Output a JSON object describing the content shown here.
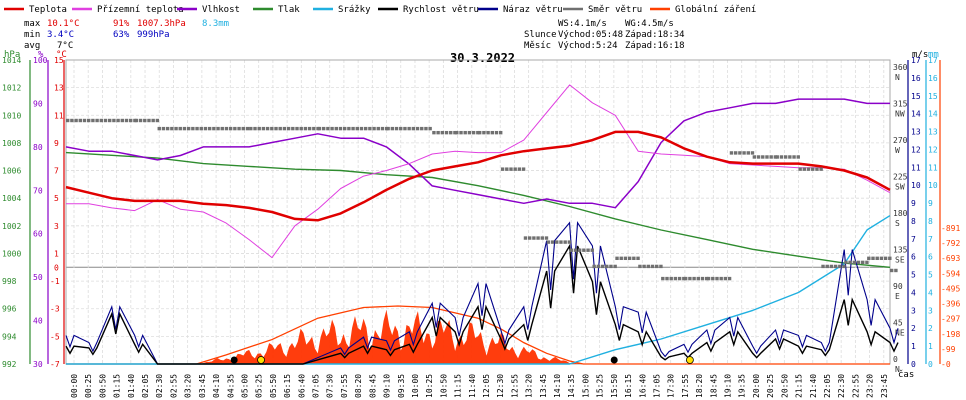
{
  "chart_data": {
    "type": "line",
    "title": "30.3.2022",
    "xlabel": "čas",
    "legend": [
      {
        "name": "Teplota",
        "color": "#e00000"
      },
      {
        "name": "Přízemní teplota",
        "color": "#e040e0"
      },
      {
        "name": "Vlhkost",
        "color": "#8a00c8"
      },
      {
        "name": "Tlak",
        "color": "#2e8b2e"
      },
      {
        "name": "Srážky",
        "color": "#20b0e0"
      },
      {
        "name": "Rychlost větru",
        "color": "#000000"
      },
      {
        "name": "Náraz větru",
        "color": "#00008b"
      },
      {
        "name": "Směr větru",
        "color": "#707070"
      },
      {
        "name": "Globální záření",
        "color": "#ff4000"
      }
    ],
    "stats": {
      "max_label": "max",
      "max_temp": "10.1°C",
      "max_hum": "91%",
      "max_press": "1007.3hPa",
      "max_rain": "8.3mm",
      "min_label": "min",
      "min_temp": "3.4°C",
      "min_hum": "63%",
      "min_press": "999hPa",
      "avg_label": "avg",
      "avg_temp": "7°C"
    },
    "wind_info": {
      "ws": "WS:4.1m/s",
      "wg": "WG:4.5m/s"
    },
    "sun": {
      "label": "Slunce",
      "rise": "Východ:05:48",
      "set": "Západ:18:34"
    },
    "moon": {
      "label": "Měsíc",
      "rise": "Východ:5:24",
      "set": "Západ:16:18"
    },
    "axes": {
      "hpa_unit": "hPa",
      "pct_unit": "%",
      "c_unit": "°C",
      "deg_unit": "m/s",
      "ms_unit": "m/s",
      "mm_unit": "mm",
      "hpa_ticks": [
        992,
        994,
        996,
        998,
        1000,
        1002,
        1004,
        1006,
        1008,
        1010,
        1012,
        1014
      ],
      "pct_ticks": [
        30,
        40,
        50,
        60,
        70,
        80,
        90,
        100
      ],
      "temp_ticks": [
        -7,
        -5,
        -3,
        -1,
        0,
        1,
        3,
        5,
        7,
        9,
        11,
        13,
        15
      ],
      "dir_ticks": [
        {
          "v": 0,
          "l": "0",
          "d": "N"
        },
        {
          "v": 45,
          "l": "45",
          "d": "NE"
        },
        {
          "v": 90,
          "l": "90",
          "d": "E"
        },
        {
          "v": 135,
          "l": "135",
          "d": "SE"
        },
        {
          "v": 180,
          "l": "180",
          "d": "S"
        },
        {
          "v": 225,
          "l": "225",
          "d": "SW"
        },
        {
          "v": 270,
          "l": "270",
          "d": "W"
        },
        {
          "v": 315,
          "l": "315",
          "d": "NW"
        },
        {
          "v": 360,
          "l": "360",
          "d": "N"
        }
      ],
      "ms_ticks": [
        0,
        1,
        2,
        3,
        4,
        5,
        6,
        7,
        8,
        9,
        10,
        11,
        12,
        13,
        14,
        15,
        16,
        17
      ],
      "mm_ticks": [
        0,
        1,
        2,
        3,
        4,
        5,
        6,
        7,
        8,
        9,
        10,
        11,
        12,
        13,
        14,
        15,
        16,
        17
      ],
      "rad_ticks": [
        0,
        99,
        198,
        297,
        396,
        495,
        594,
        693,
        792,
        891
      ]
    },
    "time_labels": [
      "00:00",
      "00:25",
      "00:50",
      "01:15",
      "01:40",
      "02:05",
      "02:30",
      "02:55",
      "03:20",
      "03:45",
      "04:10",
      "04:35",
      "05:00",
      "05:25",
      "05:50",
      "06:15",
      "06:40",
      "07:05",
      "07:30",
      "07:55",
      "08:20",
      "08:45",
      "09:10",
      "09:35",
      "10:00",
      "10:25",
      "10:50",
      "11:15",
      "11:40",
      "12:05",
      "12:30",
      "12:55",
      "13:20",
      "13:45",
      "14:10",
      "14:35",
      "15:00",
      "15:25",
      "15:50",
      "16:15",
      "16:40",
      "17:05",
      "17:30",
      "17:55",
      "18:20",
      "18:45",
      "19:10",
      "19:35",
      "20:00",
      "20:25",
      "20:50",
      "21:15",
      "21:40",
      "22:05",
      "22:30",
      "22:55",
      "23:20",
      "23:45"
    ],
    "series": [
      {
        "name": "Teplota",
        "unit": "°C",
        "points": [
          [
            0,
            5.8
          ],
          [
            1,
            5.4
          ],
          [
            2,
            5.0
          ],
          [
            3,
            4.8
          ],
          [
            4,
            4.8
          ],
          [
            5,
            4.8
          ],
          [
            6,
            4.6
          ],
          [
            7,
            4.5
          ],
          [
            8,
            4.3
          ],
          [
            9,
            4.0
          ],
          [
            10,
            3.5
          ],
          [
            11,
            3.4
          ],
          [
            12,
            3.9
          ],
          [
            13,
            4.7
          ],
          [
            14,
            5.6
          ],
          [
            15,
            6.4
          ],
          [
            16,
            7.0
          ],
          [
            17,
            7.3
          ],
          [
            18,
            7.6
          ],
          [
            19,
            8.1
          ],
          [
            20,
            8.4
          ],
          [
            21,
            8.6
          ],
          [
            22,
            8.8
          ],
          [
            23,
            9.2
          ],
          [
            24,
            9.8
          ],
          [
            25,
            9.8
          ],
          [
            26,
            9.4
          ],
          [
            27,
            8.6
          ],
          [
            28,
            8.0
          ],
          [
            29,
            7.6
          ],
          [
            30,
            7.5
          ],
          [
            31,
            7.5
          ],
          [
            32,
            7.5
          ],
          [
            33,
            7.3
          ],
          [
            34,
            7.0
          ],
          [
            35,
            6.5
          ],
          [
            36,
            5.6
          ]
        ]
      },
      {
        "name": "Přízemní teplota",
        "unit": "°C",
        "points": [
          [
            0,
            4.6
          ],
          [
            1,
            4.6
          ],
          [
            2,
            4.3
          ],
          [
            3,
            4.1
          ],
          [
            4,
            4.9
          ],
          [
            5,
            4.2
          ],
          [
            6,
            4.0
          ],
          [
            7,
            3.2
          ],
          [
            8,
            2.0
          ],
          [
            9,
            0.7
          ],
          [
            10,
            3.0
          ],
          [
            11,
            4.2
          ],
          [
            12,
            5.7
          ],
          [
            13,
            6.6
          ],
          [
            14,
            7.0
          ],
          [
            15,
            7.5
          ],
          [
            16,
            8.2
          ],
          [
            17,
            8.4
          ],
          [
            18,
            8.3
          ],
          [
            19,
            8.3
          ],
          [
            20,
            9.2
          ],
          [
            21,
            11.2
          ],
          [
            22,
            13.2
          ],
          [
            23,
            11.9
          ],
          [
            24,
            11.0
          ],
          [
            25,
            8.4
          ],
          [
            26,
            8.2
          ],
          [
            27,
            8.1
          ],
          [
            28,
            8.0
          ],
          [
            29,
            7.5
          ],
          [
            30,
            7.4
          ],
          [
            31,
            7.3
          ],
          [
            32,
            7.2
          ],
          [
            33,
            7.2
          ],
          [
            34,
            7.1
          ],
          [
            35,
            6.3
          ],
          [
            36,
            5.4
          ]
        ]
      },
      {
        "name": "Vlhkost",
        "unit": "%",
        "points": [
          [
            0,
            80
          ],
          [
            1,
            79
          ],
          [
            2,
            79
          ],
          [
            3,
            78
          ],
          [
            4,
            77
          ],
          [
            5,
            78
          ],
          [
            6,
            80
          ],
          [
            7,
            80
          ],
          [
            8,
            80
          ],
          [
            9,
            81
          ],
          [
            10,
            82
          ],
          [
            11,
            83
          ],
          [
            12,
            82
          ],
          [
            13,
            82
          ],
          [
            14,
            80
          ],
          [
            15,
            76
          ],
          [
            16,
            71
          ],
          [
            17,
            70
          ],
          [
            18,
            69
          ],
          [
            19,
            68
          ],
          [
            20,
            67
          ],
          [
            21,
            68
          ],
          [
            22,
            67
          ],
          [
            23,
            67
          ],
          [
            24,
            66
          ],
          [
            25,
            72
          ],
          [
            26,
            81
          ],
          [
            27,
            86
          ],
          [
            28,
            88
          ],
          [
            29,
            89
          ],
          [
            30,
            90
          ],
          [
            31,
            90
          ],
          [
            32,
            91
          ],
          [
            33,
            91
          ],
          [
            34,
            91
          ],
          [
            35,
            90
          ],
          [
            36,
            90
          ]
        ]
      },
      {
        "name": "Tlak",
        "unit": "hPa",
        "points": [
          [
            0,
            1007.3
          ],
          [
            2,
            1007.1
          ],
          [
            4,
            1006.9
          ],
          [
            6,
            1006.5
          ],
          [
            8,
            1006.3
          ],
          [
            10,
            1006.1
          ],
          [
            12,
            1006.0
          ],
          [
            14,
            1005.7
          ],
          [
            16,
            1005.5
          ],
          [
            18,
            1004.9
          ],
          [
            20,
            1004.2
          ],
          [
            22,
            1003.4
          ],
          [
            24,
            1002.5
          ],
          [
            26,
            1001.7
          ],
          [
            28,
            1001.0
          ],
          [
            30,
            1000.3
          ],
          [
            32,
            999.8
          ],
          [
            34,
            999.3
          ],
          [
            36,
            999.0
          ]
        ]
      },
      {
        "name": "Srážky",
        "unit": "mm",
        "points": [
          [
            0,
            0
          ],
          [
            22,
            0
          ],
          [
            24,
            0.8
          ],
          [
            26,
            1.4
          ],
          [
            28,
            2.2
          ],
          [
            30,
            3.0
          ],
          [
            32,
            4.0
          ],
          [
            34,
            5.6
          ],
          [
            35,
            7.5
          ],
          [
            36,
            8.3
          ]
        ]
      },
      {
        "name": "Rychlost větru",
        "unit": "m/s",
        "points": [
          [
            0,
            1.0
          ],
          [
            1,
            0.9
          ],
          [
            2,
            2.8
          ],
          [
            3,
            1.1
          ],
          [
            4,
            0
          ],
          [
            6,
            0
          ],
          [
            8,
            0
          ],
          [
            10,
            0
          ],
          [
            12,
            0.6
          ],
          [
            13,
            1.0
          ],
          [
            14,
            0.8
          ],
          [
            15,
            1.1
          ],
          [
            16,
            2.6
          ],
          [
            17,
            1.8
          ],
          [
            18,
            3.2
          ],
          [
            19,
            1.4
          ],
          [
            20,
            2.2
          ],
          [
            21,
            5.2
          ],
          [
            22,
            6.6
          ],
          [
            23,
            4.6
          ],
          [
            24,
            2.2
          ],
          [
            25,
            1.8
          ],
          [
            26,
            0.4
          ],
          [
            27,
            0.6
          ],
          [
            28,
            1.2
          ],
          [
            29,
            1.8
          ],
          [
            30,
            0.6
          ],
          [
            31,
            1.4
          ],
          [
            32,
            1.0
          ],
          [
            33,
            0.8
          ],
          [
            34,
            3.6
          ],
          [
            35,
            1.8
          ],
          [
            36,
            1.2
          ]
        ]
      },
      {
        "name": "Náraz větru",
        "unit": "m/s",
        "points": [
          [
            0,
            1.6
          ],
          [
            1,
            1.2
          ],
          [
            2,
            3.2
          ],
          [
            3,
            1.6
          ],
          [
            4,
            0
          ],
          [
            6,
            0
          ],
          [
            8,
            0
          ],
          [
            10,
            0
          ],
          [
            12,
            0.9
          ],
          [
            13,
            1.5
          ],
          [
            14,
            1.3
          ],
          [
            15,
            1.8
          ],
          [
            16,
            3.4
          ],
          [
            17,
            2.6
          ],
          [
            18,
            4.5
          ],
          [
            19,
            1.9
          ],
          [
            20,
            3.2
          ],
          [
            21,
            6.9
          ],
          [
            22,
            7.9
          ],
          [
            23,
            6.6
          ],
          [
            24,
            3.2
          ],
          [
            25,
            2.9
          ],
          [
            26,
            0.7
          ],
          [
            27,
            1.1
          ],
          [
            28,
            1.9
          ],
          [
            29,
            2.6
          ],
          [
            30,
            1.0
          ],
          [
            31,
            1.9
          ],
          [
            32,
            1.6
          ],
          [
            33,
            1.2
          ],
          [
            34,
            6.4
          ],
          [
            35,
            3.6
          ],
          [
            36,
            2.0
          ]
        ]
      },
      {
        "name": "Směr větru",
        "unit": "°",
        "points": [
          [
            0,
            300
          ],
          [
            3,
            300
          ],
          [
            4,
            290
          ],
          [
            8,
            290
          ],
          [
            11,
            290
          ],
          [
            14,
            290
          ],
          [
            16,
            285
          ],
          [
            17,
            285
          ],
          [
            18,
            285
          ],
          [
            19,
            240
          ],
          [
            20,
            155
          ],
          [
            21,
            150
          ],
          [
            22,
            140
          ],
          [
            23,
            120
          ],
          [
            24,
            130
          ],
          [
            25,
            120
          ],
          [
            26,
            105
          ],
          [
            27,
            105
          ],
          [
            28,
            105
          ],
          [
            29,
            260
          ],
          [
            30,
            255
          ],
          [
            31,
            255
          ],
          [
            32,
            240
          ],
          [
            33,
            120
          ],
          [
            34,
            125
          ],
          [
            35,
            130
          ],
          [
            36,
            115
          ]
        ]
      },
      {
        "name": "Globální záření",
        "unit": "W/m²",
        "points": [
          [
            0,
            0
          ],
          [
            5.7,
            0
          ],
          [
            7,
            60
          ],
          [
            9,
            160
          ],
          [
            11,
            300
          ],
          [
            13,
            370
          ],
          [
            14.5,
            380
          ],
          [
            16,
            370
          ],
          [
            18,
            300
          ],
          [
            19,
            230
          ],
          [
            20,
            140
          ],
          [
            21,
            70
          ],
          [
            22,
            20
          ],
          [
            22.6,
            0
          ],
          [
            36,
            0
          ]
        ]
      }
    ]
  }
}
